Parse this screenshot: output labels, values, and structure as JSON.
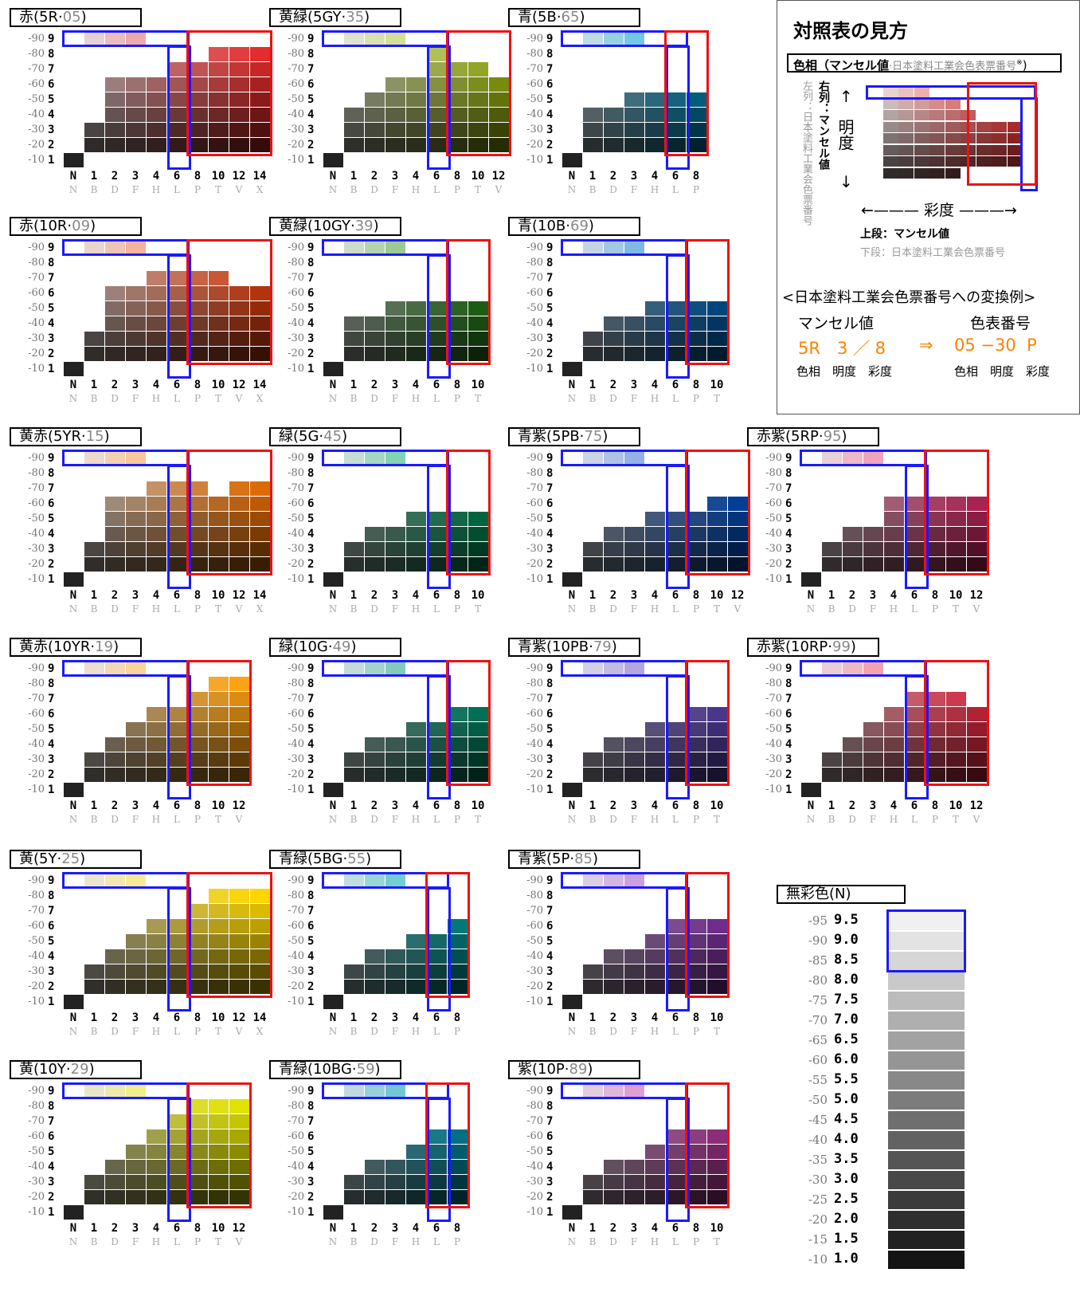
{
  "charts": [
    {
      "id": "c1",
      "title": "赤(5R·",
      "code": "05",
      "close": ")",
      "hue": [
        200,
        60,
        60
      ],
      "col": 0,
      "row": 0,
      "chroma": [
        "1",
        "2",
        "3",
        "4",
        "6",
        "8",
        "10",
        "12",
        "14"
      ],
      "letters": [
        "N",
        "B",
        "D",
        "F",
        "H",
        "L",
        "P",
        "T",
        "V",
        "X"
      ],
      "max": [
        0,
        3,
        6,
        6,
        6,
        7,
        7,
        9,
        8,
        8
      ]
    },
    {
      "id": "c2",
      "title": "黄緑(5GY·",
      "code": "35",
      "close": ")",
      "hue": [
        150,
        170,
        40
      ],
      "col": 1,
      "row": 0,
      "chroma": [
        "1",
        "2",
        "3",
        "4",
        "6",
        "8",
        "10",
        "12"
      ],
      "letters": [
        "N",
        "B",
        "D",
        "F",
        "H",
        "L",
        "P",
        "T",
        "V"
      ],
      "max": [
        0,
        4,
        5,
        6,
        6,
        8,
        7,
        7,
        6
      ],
      "bchroma": 7,
      "rchroma": 9
    },
    {
      "id": "c3",
      "title": "青(5B·",
      "code": "65",
      "close": ")",
      "hue": [
        20,
        140,
        180
      ],
      "col": 2,
      "row": 0,
      "chroma": [
        "1",
        "2",
        "3",
        "4",
        "6",
        "8"
      ],
      "letters": [
        "N",
        "B",
        "D",
        "F",
        "H",
        "L",
        "P"
      ],
      "max": [
        0,
        4,
        4,
        5,
        5,
        5,
        5
      ]
    },
    {
      "id": "c4",
      "title": "赤(10R·",
      "code": "09",
      "close": ")",
      "hue": [
        210,
        80,
        40
      ],
      "col": 0,
      "row": 1,
      "chroma": [
        "1",
        "2",
        "3",
        "4",
        "6",
        "8",
        "10",
        "12",
        "14"
      ],
      "letters": [
        "N",
        "B",
        "D",
        "F",
        "H",
        "L",
        "P",
        "T",
        "V",
        "X"
      ],
      "max": [
        0,
        3,
        6,
        6,
        7,
        7,
        7,
        7,
        6,
        6
      ]
    },
    {
      "id": "c5",
      "title": "黄緑(10GY·",
      "code": "39",
      "close": ")",
      "hue": [
        60,
        140,
        50
      ],
      "col": 1,
      "row": 1,
      "chroma": [
        "1",
        "2",
        "3",
        "4",
        "6",
        "8",
        "10"
      ],
      "letters": [
        "N",
        "B",
        "D",
        "F",
        "H",
        "L",
        "P",
        "T"
      ],
      "max": [
        0,
        4,
        4,
        5,
        5,
        5,
        5,
        5
      ]
    },
    {
      "id": "c6",
      "title": "青(10B·",
      "code": "69",
      "close": ")",
      "hue": [
        20,
        110,
        180
      ],
      "col": 2,
      "row": 1,
      "chroma": [
        "1",
        "2",
        "3",
        "4",
        "6",
        "8",
        "10"
      ],
      "letters": [
        "N",
        "B",
        "D",
        "F",
        "H",
        "L",
        "P",
        "T"
      ],
      "max": [
        0,
        3,
        4,
        4,
        5,
        5,
        5,
        5
      ]
    },
    {
      "id": "c7",
      "title": "黄赤(5YR·",
      "code": "15",
      "close": ")",
      "hue": [
        220,
        120,
        30
      ],
      "col": 0,
      "row": 2,
      "chroma": [
        "1",
        "2",
        "3",
        "4",
        "6",
        "8",
        "10",
        "12",
        "14"
      ],
      "letters": [
        "N",
        "B",
        "D",
        "F",
        "H",
        "L",
        "P",
        "T",
        "V",
        "X"
      ],
      "max": [
        0,
        3,
        6,
        6,
        7,
        7,
        7,
        6,
        7,
        7
      ]
    },
    {
      "id": "c8",
      "title": "緑(5G·",
      "code": "45",
      "close": ")",
      "hue": [
        20,
        150,
        100
      ],
      "col": 1,
      "row": 2,
      "chroma": [
        "1",
        "2",
        "3",
        "4",
        "6",
        "8",
        "10"
      ],
      "letters": [
        "N",
        "B",
        "D",
        "F",
        "H",
        "L",
        "P",
        "T"
      ],
      "max": [
        0,
        3,
        4,
        4,
        5,
        5,
        5,
        5
      ]
    },
    {
      "id": "c9",
      "title": "青紫(5PB·",
      "code": "75",
      "close": ")",
      "hue": [
        30,
        90,
        180
      ],
      "col": 2,
      "row": 2,
      "chroma": [
        "1",
        "2",
        "3",
        "4",
        "6",
        "8",
        "10",
        "12"
      ],
      "letters": [
        "N",
        "B",
        "D",
        "F",
        "H",
        "L",
        "P",
        "T",
        "V"
      ],
      "max": [
        0,
        3,
        4,
        4,
        5,
        5,
        5,
        6,
        6
      ]
    },
    {
      "id": "c10",
      "title": "赤紫(5RP·",
      "code": "95",
      "close": ")",
      "hue": [
        200,
        60,
        110
      ],
      "col": 3,
      "row": 2,
      "chroma": [
        "1",
        "2",
        "3",
        "4",
        "6",
        "8",
        "10",
        "12"
      ],
      "letters": [
        "N",
        "B",
        "D",
        "F",
        "H",
        "L",
        "P",
        "T",
        "V"
      ],
      "max": [
        0,
        3,
        4,
        4,
        6,
        6,
        6,
        6,
        6
      ]
    },
    {
      "id": "c11",
      "title": "黄赤(10YR·",
      "code": "19",
      "close": ")",
      "hue": [
        220,
        150,
        40
      ],
      "col": 0,
      "row": 3,
      "chroma": [
        "1",
        "2",
        "3",
        "4",
        "6",
        "8",
        "10",
        "12"
      ],
      "letters": [
        "N",
        "B",
        "D",
        "F",
        "H",
        "L",
        "P",
        "T",
        "V"
      ],
      "max": [
        0,
        3,
        4,
        5,
        6,
        6,
        7,
        8,
        8
      ]
    },
    {
      "id": "c12",
      "title": "緑(10G·",
      "code": "49",
      "close": ")",
      "hue": [
        20,
        140,
        110
      ],
      "col": 1,
      "row": 3,
      "chroma": [
        "1",
        "2",
        "3",
        "4",
        "6",
        "8",
        "10"
      ],
      "letters": [
        "N",
        "B",
        "D",
        "F",
        "H",
        "L",
        "P",
        "T"
      ],
      "max": [
        0,
        3,
        4,
        4,
        5,
        5,
        6,
        6
      ]
    },
    {
      "id": "c13",
      "title": "青紫(10PB·",
      "code": "79",
      "close": ")",
      "hue": [
        100,
        80,
        170
      ],
      "col": 2,
      "row": 3,
      "chroma": [
        "1",
        "2",
        "3",
        "4",
        "6",
        "8",
        "10"
      ],
      "letters": [
        "N",
        "B",
        "D",
        "F",
        "H",
        "L",
        "P",
        "T"
      ],
      "max": [
        0,
        3,
        4,
        4,
        5,
        5,
        6,
        6
      ]
    },
    {
      "id": "c14",
      "title": "赤紫(10RP·",
      "code": "99",
      "close": ")",
      "hue": [
        210,
        60,
        80
      ],
      "col": 3,
      "row": 3,
      "chroma": [
        "1",
        "2",
        "3",
        "4",
        "6",
        "8",
        "10",
        "12"
      ],
      "letters": [
        "N",
        "B",
        "D",
        "F",
        "H",
        "L",
        "P",
        "T",
        "V"
      ],
      "max": [
        0,
        3,
        4,
        5,
        6,
        7,
        7,
        7,
        6
      ]
    },
    {
      "id": "c15",
      "title": "黄(5Y·",
      "code": "25",
      "close": ")",
      "hue": [
        220,
        190,
        20
      ],
      "col": 0,
      "row": 4,
      "chroma": [
        "1",
        "2",
        "3",
        "4",
        "6",
        "8",
        "10",
        "12",
        "14"
      ],
      "letters": [
        "N",
        "B",
        "D",
        "F",
        "H",
        "L",
        "P",
        "T",
        "V",
        "X"
      ],
      "max": [
        0,
        3,
        4,
        5,
        6,
        6,
        7,
        8,
        8,
        8
      ]
    },
    {
      "id": "c16",
      "title": "青緑(5BG·",
      "code": "55",
      "close": ")",
      "hue": [
        20,
        150,
        150
      ],
      "col": 1,
      "row": 4,
      "chroma": [
        "1",
        "2",
        "3",
        "4",
        "6",
        "8"
      ],
      "letters": [
        "N",
        "B",
        "D",
        "F",
        "H",
        "L",
        "P"
      ],
      "max": [
        0,
        3,
        4,
        4,
        5,
        5,
        6
      ]
    },
    {
      "id": "c17",
      "title": "青紫(5P·",
      "code": "85",
      "close": ")",
      "hue": [
        140,
        70,
        170
      ],
      "col": 2,
      "row": 4,
      "chroma": [
        "1",
        "2",
        "3",
        "4",
        "6",
        "8",
        "10"
      ],
      "letters": [
        "N",
        "B",
        "D",
        "F",
        "H",
        "L",
        "P",
        "T"
      ],
      "max": [
        0,
        3,
        4,
        4,
        5,
        6,
        6,
        6
      ]
    },
    {
      "id": "c18",
      "title": "黄(10Y·",
      "code": "29",
      "close": ")",
      "hue": [
        200,
        200,
        20
      ],
      "col": 0,
      "row": 5,
      "chroma": [
        "1",
        "2",
        "3",
        "4",
        "6",
        "8",
        "10",
        "12"
      ],
      "letters": [
        "N",
        "B",
        "D",
        "F",
        "H",
        "L",
        "P",
        "T",
        "V"
      ],
      "max": [
        0,
        3,
        4,
        5,
        6,
        7,
        8,
        8,
        8
      ]
    },
    {
      "id": "c19",
      "title": "青緑(10BG·",
      "code": "59",
      "close": ")",
      "hue": [
        20,
        140,
        160
      ],
      "col": 1,
      "row": 5,
      "chroma": [
        "1",
        "2",
        "3",
        "4",
        "6",
        "8"
      ],
      "letters": [
        "N",
        "B",
        "D",
        "F",
        "H",
        "L",
        "P"
      ],
      "max": [
        0,
        3,
        4,
        4,
        5,
        6,
        6
      ]
    },
    {
      "id": "c20",
      "title": "紫(10P·",
      "code": "89",
      "close": ")",
      "hue": [
        170,
        70,
        150
      ],
      "col": 2,
      "row": 5,
      "chroma": [
        "1",
        "2",
        "3",
        "4",
        "6",
        "8",
        "10"
      ],
      "letters": [
        "N",
        "B",
        "D",
        "F",
        "H",
        "L",
        "P",
        "T"
      ],
      "max": [
        0,
        3,
        4,
        4,
        5,
        6,
        6,
        6
      ]
    }
  ],
  "row_labels": [
    "-90",
    "-80",
    "-70",
    "-60",
    "-50",
    "-40",
    "-30",
    "-20",
    "-10"
  ],
  "row_values": [
    "9",
    "8",
    "7",
    "6",
    "5",
    "4",
    "3",
    "2",
    "1"
  ],
  "neutral": {
    "title": "無彩色(N)",
    "labels": [
      "-95",
      "-90",
      "-85",
      "-80",
      "-75",
      "-70",
      "-65",
      "-60",
      "-55",
      "-50",
      "-45",
      "-40",
      "-35",
      "-30",
      "-25",
      "-20",
      "-15",
      "-10"
    ],
    "values": [
      "9.5",
      "9.0",
      "8.5",
      "8.0",
      "7.5",
      "7.0",
      "6.5",
      "6.0",
      "5.5",
      "5.0",
      "4.5",
      "4.0",
      "3.5",
      "3.0",
      "2.5",
      "2.0",
      "1.5",
      "1.0"
    ]
  },
  "legend": {
    "heading": "対照表の見方",
    "hue_label": "色相（マンセル値",
    "hue_label2": "·日本塗料工業会色表票番号",
    "hue_sup": "※",
    "hue_close": ")",
    "left_col": "左列：日本塗料工業会色票番号",
    "right_col": "右列：マンセル値",
    "value_axis": "明度",
    "chroma_axis": "彩度",
    "top_row": "上段：マンセル値",
    "bottom_row": "下段：日本塗料工業会色票番号",
    "example_title": "<日本塗料工業会色票番号への変換例>",
    "munsell_head": "マンセル値",
    "code_head": "色表番号",
    "munsell_example": "5R　3 ／ 8",
    "arrow": "⇒",
    "code_example": "05 −30  P",
    "sub_munsell": "色相　明度　彩度",
    "sub_code": "色相　明度　彩度",
    "orange": "#ff8000"
  }
}
